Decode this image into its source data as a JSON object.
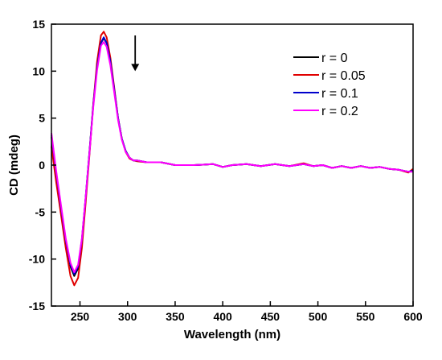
{
  "chart_data": {
    "type": "line",
    "title": "",
    "xlabel": "Wavelength (nm)",
    "ylabel": "CD (mdeg)",
    "xlim": [
      220,
      600
    ],
    "ylim": [
      -15,
      15
    ],
    "xticks": [
      250,
      300,
      350,
      400,
      450,
      500,
      550,
      600
    ],
    "yticks": [
      -15,
      -10,
      -5,
      0,
      5,
      10,
      15
    ],
    "grid": false,
    "legend_position": "top-right",
    "annotation": "downward arrow near the 275 nm peak, marking decreasing CD intensity with increasing r",
    "series": [
      {
        "name": "r = 0",
        "color": "#000000",
        "points": [
          [
            220,
            3.0
          ],
          [
            225,
            -1.0
          ],
          [
            230,
            -4.5
          ],
          [
            235,
            -8.0
          ],
          [
            240,
            -10.8
          ],
          [
            244,
            -11.8
          ],
          [
            248,
            -11.0
          ],
          [
            252,
            -8.0
          ],
          [
            256,
            -3.5
          ],
          [
            260,
            1.5
          ],
          [
            264,
            6.5
          ],
          [
            268,
            10.5
          ],
          [
            272,
            13.0
          ],
          [
            275,
            13.5
          ],
          [
            278,
            13.0
          ],
          [
            282,
            11.0
          ],
          [
            286,
            8.0
          ],
          [
            290,
            5.0
          ],
          [
            294,
            2.8
          ],
          [
            298,
            1.5
          ],
          [
            302,
            0.8
          ],
          [
            306,
            0.5
          ],
          [
            310,
            0.5
          ],
          [
            320,
            0.3
          ],
          [
            335,
            0.3
          ],
          [
            350,
            0.0
          ],
          [
            370,
            0.0
          ],
          [
            390,
            0.1
          ],
          [
            400,
            -0.2
          ],
          [
            410,
            0.0
          ],
          [
            425,
            0.1
          ],
          [
            440,
            -0.1
          ],
          [
            455,
            0.1
          ],
          [
            470,
            -0.1
          ],
          [
            485,
            0.1
          ],
          [
            495,
            -0.1
          ],
          [
            505,
            0.0
          ],
          [
            515,
            -0.3
          ],
          [
            525,
            -0.1
          ],
          [
            535,
            -0.3
          ],
          [
            545,
            -0.1
          ],
          [
            555,
            -0.3
          ],
          [
            565,
            -0.2
          ],
          [
            575,
            -0.4
          ],
          [
            585,
            -0.5
          ],
          [
            595,
            -0.7
          ],
          [
            600,
            -0.6
          ]
        ]
      },
      {
        "name": "r = 0.05",
        "color": "#e00000",
        "points": [
          [
            220,
            2.0
          ],
          [
            225,
            -1.8
          ],
          [
            230,
            -5.2
          ],
          [
            235,
            -8.8
          ],
          [
            240,
            -11.8
          ],
          [
            244,
            -12.8
          ],
          [
            248,
            -12.0
          ],
          [
            252,
            -8.8
          ],
          [
            256,
            -4.0
          ],
          [
            260,
            1.2
          ],
          [
            264,
            6.5
          ],
          [
            268,
            11.0
          ],
          [
            272,
            13.8
          ],
          [
            275,
            14.2
          ],
          [
            278,
            13.6
          ],
          [
            282,
            11.4
          ],
          [
            286,
            8.2
          ],
          [
            290,
            5.0
          ],
          [
            294,
            2.8
          ],
          [
            298,
            1.4
          ],
          [
            302,
            0.7
          ],
          [
            306,
            0.5
          ],
          [
            310,
            0.4
          ],
          [
            320,
            0.3
          ],
          [
            335,
            0.3
          ],
          [
            350,
            0.0
          ],
          [
            370,
            0.0
          ],
          [
            390,
            0.1
          ],
          [
            400,
            -0.2
          ],
          [
            410,
            0.0
          ],
          [
            425,
            0.1
          ],
          [
            440,
            -0.1
          ],
          [
            455,
            0.1
          ],
          [
            470,
            -0.1
          ],
          [
            485,
            0.2
          ],
          [
            495,
            -0.1
          ],
          [
            505,
            0.0
          ],
          [
            515,
            -0.3
          ],
          [
            525,
            -0.1
          ],
          [
            535,
            -0.3
          ],
          [
            545,
            -0.1
          ],
          [
            555,
            -0.3
          ],
          [
            565,
            -0.2
          ],
          [
            575,
            -0.4
          ],
          [
            585,
            -0.5
          ],
          [
            595,
            -0.8
          ],
          [
            600,
            -0.4
          ]
        ]
      },
      {
        "name": "r = 0.1",
        "color": "#0000cc",
        "points": [
          [
            220,
            3.2
          ],
          [
            225,
            -0.8
          ],
          [
            230,
            -4.4
          ],
          [
            235,
            -8.0
          ],
          [
            240,
            -10.6
          ],
          [
            244,
            -11.6
          ],
          [
            248,
            -10.8
          ],
          [
            252,
            -7.9
          ],
          [
            256,
            -3.4
          ],
          [
            260,
            1.5
          ],
          [
            264,
            6.4
          ],
          [
            268,
            10.4
          ],
          [
            272,
            13.0
          ],
          [
            275,
            13.6
          ],
          [
            278,
            13.0
          ],
          [
            282,
            11.0
          ],
          [
            286,
            8.0
          ],
          [
            290,
            5.0
          ],
          [
            294,
            2.8
          ],
          [
            298,
            1.5
          ],
          [
            302,
            0.8
          ],
          [
            306,
            0.5
          ],
          [
            310,
            0.5
          ],
          [
            320,
            0.3
          ],
          [
            335,
            0.3
          ],
          [
            350,
            0.0
          ],
          [
            370,
            0.0
          ],
          [
            390,
            0.1
          ],
          [
            400,
            -0.2
          ],
          [
            410,
            0.0
          ],
          [
            425,
            0.1
          ],
          [
            440,
            -0.1
          ],
          [
            455,
            0.1
          ],
          [
            470,
            -0.1
          ],
          [
            485,
            0.1
          ],
          [
            495,
            -0.1
          ],
          [
            505,
            0.0
          ],
          [
            515,
            -0.3
          ],
          [
            525,
            -0.1
          ],
          [
            535,
            -0.3
          ],
          [
            545,
            -0.1
          ],
          [
            555,
            -0.3
          ],
          [
            565,
            -0.2
          ],
          [
            575,
            -0.4
          ],
          [
            585,
            -0.5
          ],
          [
            595,
            -0.7
          ],
          [
            600,
            -0.6
          ]
        ]
      },
      {
        "name": "r = 0.2",
        "color": "#ff00ff",
        "points": [
          [
            220,
            3.4
          ],
          [
            225,
            -0.6
          ],
          [
            230,
            -4.2
          ],
          [
            235,
            -7.8
          ],
          [
            240,
            -10.4
          ],
          [
            244,
            -11.4
          ],
          [
            248,
            -10.6
          ],
          [
            252,
            -7.8
          ],
          [
            256,
            -3.4
          ],
          [
            260,
            1.4
          ],
          [
            264,
            6.2
          ],
          [
            268,
            10.1
          ],
          [
            272,
            12.7
          ],
          [
            275,
            13.1
          ],
          [
            278,
            12.6
          ],
          [
            282,
            10.6
          ],
          [
            286,
            7.7
          ],
          [
            290,
            4.8
          ],
          [
            294,
            2.7
          ],
          [
            298,
            1.4
          ],
          [
            302,
            0.8
          ],
          [
            306,
            0.5
          ],
          [
            310,
            0.5
          ],
          [
            320,
            0.3
          ],
          [
            335,
            0.3
          ],
          [
            350,
            0.0
          ],
          [
            370,
            0.0
          ],
          [
            390,
            0.1
          ],
          [
            400,
            -0.2
          ],
          [
            410,
            0.0
          ],
          [
            425,
            0.1
          ],
          [
            440,
            -0.1
          ],
          [
            455,
            0.1
          ],
          [
            470,
            -0.1
          ],
          [
            485,
            0.1
          ],
          [
            495,
            -0.1
          ],
          [
            505,
            0.0
          ],
          [
            515,
            -0.3
          ],
          [
            525,
            -0.1
          ],
          [
            535,
            -0.3
          ],
          [
            545,
            -0.1
          ],
          [
            555,
            -0.3
          ],
          [
            565,
            -0.2
          ],
          [
            575,
            -0.4
          ],
          [
            585,
            -0.5
          ],
          [
            595,
            -0.7
          ],
          [
            600,
            -0.7
          ]
        ]
      }
    ]
  }
}
